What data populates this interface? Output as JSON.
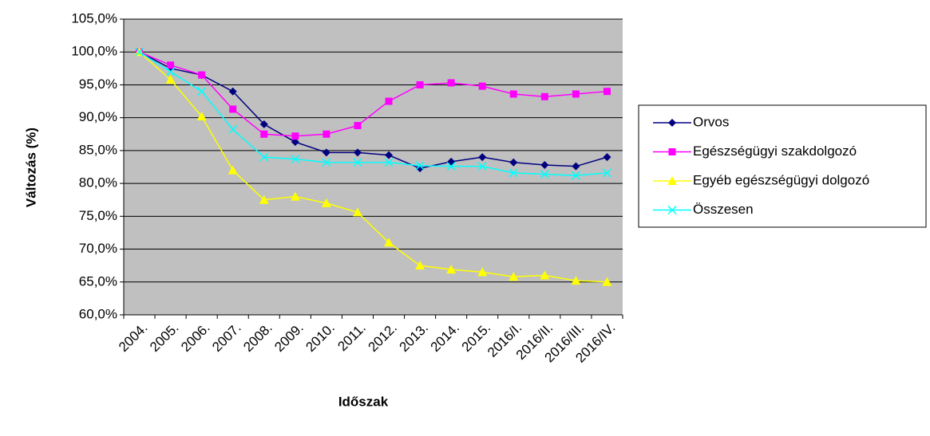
{
  "chart_data": {
    "type": "line",
    "y_label": "Változás (%)",
    "x_label": "Időszak",
    "categories": [
      "2004.",
      "2005.",
      "2006.",
      "2007.",
      "2008.",
      "2009.",
      "2010.",
      "2011.",
      "2012.",
      "2013.",
      "2014.",
      "2015.",
      "2016/I.",
      "2016/II.",
      "2016/III.",
      "2016/IV."
    ],
    "series": [
      {
        "name": "Orvos",
        "color": "#000080",
        "marker": "diamond",
        "values": [
          100,
          97.5,
          96.5,
          94,
          89,
          86.3,
          84.7,
          84.7,
          84.3,
          82.3,
          83.3,
          84,
          83.2,
          82.8,
          82.6,
          84
        ]
      },
      {
        "name": "Egészségügyi szakdolgozó",
        "color": "#ff00ff",
        "marker": "square",
        "values": [
          100,
          98,
          96.5,
          91.3,
          87.5,
          87.2,
          87.5,
          88.8,
          92.5,
          95,
          95.3,
          94.8,
          93.6,
          93.2,
          93.6,
          94
        ]
      },
      {
        "name": "Egyéb egészségügyi dolgozó",
        "color": "#ffff00",
        "marker": "triangle",
        "values": [
          100,
          95.8,
          90.2,
          82,
          77.5,
          78,
          77,
          75.6,
          71,
          67.5,
          66.9,
          66.5,
          65.8,
          66,
          65.2,
          65
        ]
      },
      {
        "name": "Összesen",
        "color": "#00ffff",
        "marker": "x",
        "values": [
          100,
          97,
          94,
          88.2,
          84,
          83.7,
          83.2,
          83.2,
          83.2,
          82.7,
          82.6,
          82.6,
          81.6,
          81.4,
          81.2,
          81.6
        ]
      }
    ],
    "ylim": [
      60,
      105
    ],
    "yticks": [
      {
        "value": 60,
        "label": "60,0%"
      },
      {
        "value": 65,
        "label": "65,0%"
      },
      {
        "value": 70,
        "label": "70,0%"
      },
      {
        "value": 75,
        "label": "75,0%"
      },
      {
        "value": 80,
        "label": "80,0%"
      },
      {
        "value": 85,
        "label": "85,0%"
      },
      {
        "value": 90,
        "label": "90,0%"
      },
      {
        "value": 95,
        "label": "95,0%"
      },
      {
        "value": 100,
        "label": "100,0%"
      },
      {
        "value": 105,
        "label": "105,0%"
      }
    ],
    "grid": true,
    "plot_background": "#c0c0c0",
    "legend": "right"
  }
}
